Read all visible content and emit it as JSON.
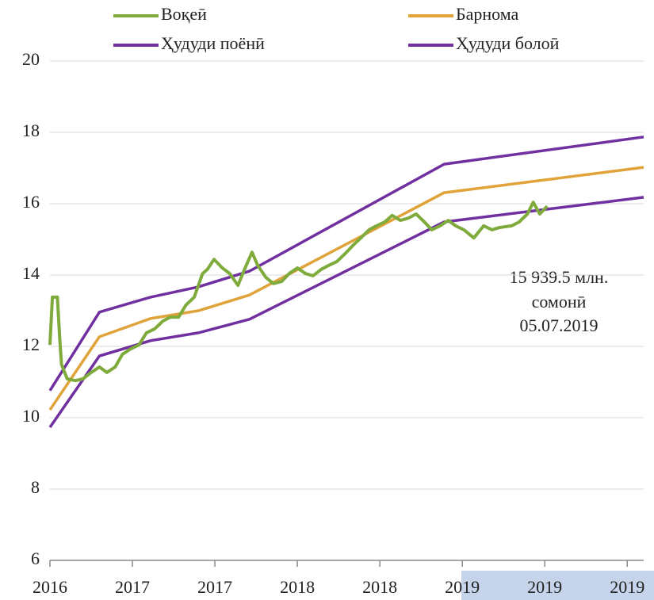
{
  "chart_data": {
    "type": "line",
    "xlim": [
      0,
      7.2
    ],
    "xticks": [
      {
        "value": 0,
        "label": "2016"
      },
      {
        "value": 1,
        "label": "2017"
      },
      {
        "value": 2,
        "label": "2017"
      },
      {
        "value": 3,
        "label": "2018"
      },
      {
        "value": 4,
        "label": "2018"
      },
      {
        "value": 5,
        "label": "2019"
      },
      {
        "value": 6,
        "label": "2019"
      },
      {
        "value": 7,
        "label": "2019"
      }
    ],
    "ylim": [
      6,
      20
    ],
    "yticks": [
      6,
      8,
      10,
      12,
      14,
      16,
      18,
      20
    ],
    "grid": true,
    "series": [
      {
        "name": "Воқеӣ",
        "color": "#7fab3c",
        "x": [
          0,
          0.03,
          0.09,
          0.12,
          0.14,
          0.21,
          0.31,
          0.4,
          0.5,
          0.6,
          0.69,
          0.79,
          0.88,
          0.98,
          1.08,
          1.17,
          1.27,
          1.37,
          1.46,
          1.56,
          1.65,
          1.75,
          1.85,
          1.91,
          1.99,
          2.09,
          2.18,
          2.28,
          2.36,
          2.45,
          2.52,
          2.62,
          2.71,
          2.81,
          2.9,
          3.0,
          3.1,
          3.19,
          3.29,
          3.38,
          3.48,
          3.58,
          3.67,
          3.77,
          3.87,
          3.96,
          4.06,
          4.15,
          4.25,
          4.35,
          4.44,
          4.54,
          4.63,
          4.73,
          4.83,
          4.92,
          5.02,
          5.14,
          5.26,
          5.36,
          5.45,
          5.6,
          5.69,
          5.79,
          5.86,
          5.94,
          6.03
        ],
        "values": [
          12.04,
          13.38,
          13.38,
          12.16,
          11.49,
          11.09,
          11.04,
          11.09,
          11.27,
          11.42,
          11.27,
          11.42,
          11.78,
          11.93,
          12.04,
          12.38,
          12.49,
          12.71,
          12.82,
          12.82,
          13.16,
          13.38,
          14.04,
          14.16,
          14.44,
          14.2,
          14.04,
          13.71,
          14.16,
          14.64,
          14.27,
          13.93,
          13.76,
          13.82,
          14.04,
          14.2,
          14.04,
          13.98,
          14.16,
          14.27,
          14.38,
          14.6,
          14.82,
          15.04,
          15.27,
          15.38,
          15.49,
          15.67,
          15.53,
          15.6,
          15.71,
          15.49,
          15.27,
          15.38,
          15.53,
          15.38,
          15.27,
          15.04,
          15.38,
          15.27,
          15.33,
          15.38,
          15.49,
          15.71,
          16.04,
          15.71,
          15.93
        ]
      },
      {
        "name": "Барнома",
        "color": "#dfa33a",
        "x": [
          0,
          0.6,
          1.22,
          1.8,
          2.42,
          4.78,
          7.2
        ],
        "values": [
          10.22,
          12.27,
          12.78,
          13.0,
          13.44,
          16.31,
          17.02
        ]
      },
      {
        "name": "Ҳудуди поёнӣ",
        "color": "#7030a0",
        "x": [
          0,
          0.6,
          1.22,
          1.8,
          2.42,
          4.78,
          7.2
        ],
        "values": [
          9.73,
          11.73,
          12.16,
          12.38,
          12.76,
          15.49,
          16.18
        ]
      },
      {
        "name": "Ҳудуди болоӣ",
        "color": "#7030a0",
        "x": [
          0,
          0.6,
          1.22,
          1.8,
          2.42,
          4.78,
          7.2
        ],
        "values": [
          10.76,
          12.96,
          13.38,
          13.67,
          14.11,
          17.11,
          17.87
        ]
      }
    ],
    "annotation": [
      "15 939.5 млн.",
      "сомонӣ",
      "05.07.2019"
    ]
  }
}
